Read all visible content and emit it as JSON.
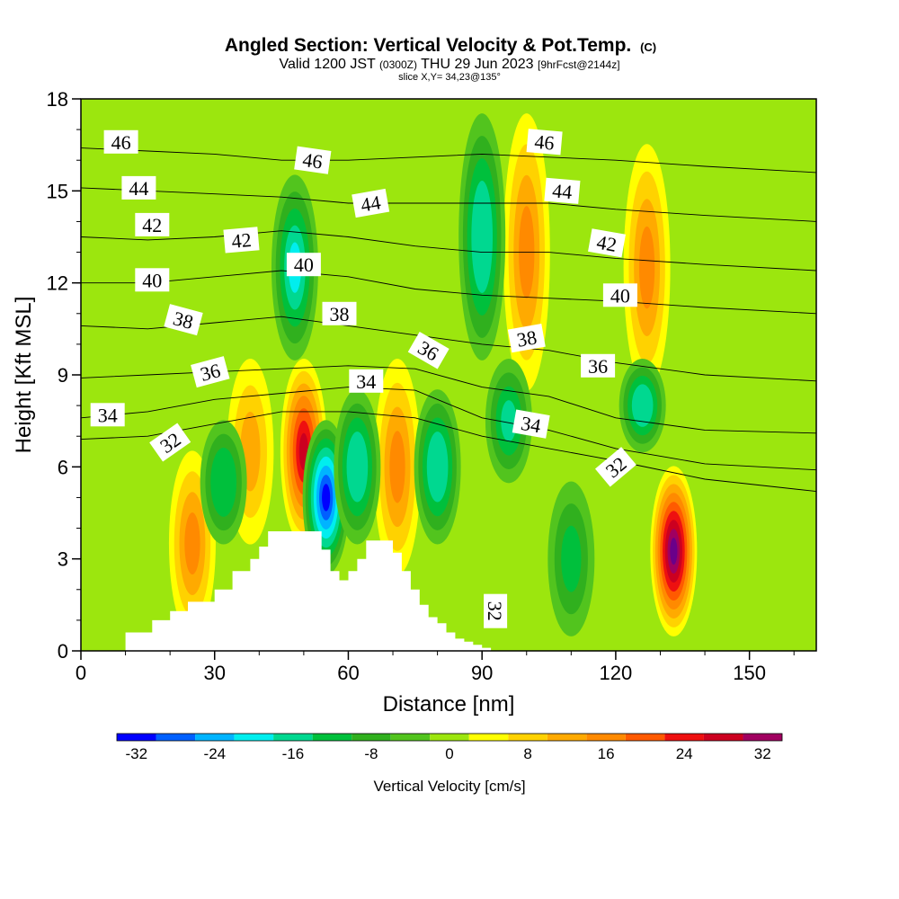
{
  "header": {
    "title_main": "Angled Section: Vertical Velocity & Pot.Temp.",
    "title_copyright": "(C)",
    "valid_prefix": "Valid 1200 JST",
    "valid_utc": "(0300Z)",
    "valid_date": "THU 29 Jun 2023",
    "forecast_info": "[9hrFcst@2144z]",
    "slice_info": "slice X,Y= 34,23@135°"
  },
  "chart_data": {
    "type": "heatmap",
    "xlabel": "Distance [nm]",
    "ylabel": "Height [Kft MSL]",
    "xlim": [
      0,
      165
    ],
    "ylim": [
      0,
      18
    ],
    "x_ticks": [
      0,
      30,
      60,
      90,
      120,
      150
    ],
    "y_ticks": [
      0,
      3,
      6,
      9,
      12,
      15,
      18
    ],
    "fill_variable": "Vertical Velocity [cm/s]",
    "contour_variable": "Potential Temperature (C)",
    "colorbar": {
      "label": "Vertical Velocity [cm/s]",
      "ticks": [
        -32,
        -24,
        -16,
        -8,
        0,
        8,
        16,
        24,
        32
      ],
      "bins": [
        -34,
        -30,
        -26,
        -22,
        -18,
        -14,
        -10,
        -6,
        -2,
        2,
        6,
        10,
        14,
        18,
        22,
        26,
        30,
        34
      ],
      "colors": [
        "#0000ff",
        "#0060ff",
        "#00b4ff",
        "#00eeee",
        "#00d890",
        "#00c03c",
        "#30b01e",
        "#52c41e",
        "#9ce60e",
        "#ffff00",
        "#ffd200",
        "#ffaa00",
        "#ff8a00",
        "#ff5a00",
        "#ee1010",
        "#cc0020",
        "#a00060",
        "#6a008a"
      ]
    },
    "updraft_columns": [
      {
        "x": 25,
        "z": [
          1,
          6
        ],
        "peak_w": 14
      },
      {
        "x": 38,
        "z": [
          4,
          9
        ],
        "peak_w": 10
      },
      {
        "x": 50,
        "z": [
          4,
          9
        ],
        "peak_w": 26
      },
      {
        "x": 71,
        "z": [
          3,
          9
        ],
        "peak_w": 16
      },
      {
        "x": 100,
        "z": [
          9,
          17
        ],
        "peak_w": 14
      },
      {
        "x": 127,
        "z": [
          9,
          16
        ],
        "peak_w": 14
      },
      {
        "x": 133,
        "z": [
          1,
          5.5
        ],
        "peak_w": 34
      }
    ],
    "downdraft_columns": [
      {
        "x": 32,
        "z": [
          4,
          7
        ],
        "peak_w": -14
      },
      {
        "x": 48,
        "z": [
          10,
          15
        ],
        "peak_w": -20
      },
      {
        "x": 55,
        "z": [
          3,
          7
        ],
        "peak_w": -32
      },
      {
        "x": 62,
        "z": [
          4,
          8
        ],
        "peak_w": -18
      },
      {
        "x": 80,
        "z": [
          4,
          8
        ],
        "peak_w": -18
      },
      {
        "x": 90,
        "z": [
          10,
          17
        ],
        "peak_w": -18
      },
      {
        "x": 96,
        "z": [
          6,
          9
        ],
        "peak_w": -16
      },
      {
        "x": 110,
        "z": [
          1,
          5
        ],
        "peak_w": -12
      },
      {
        "x": 126,
        "z": [
          7,
          9
        ],
        "peak_w": -18
      }
    ],
    "terrain_profile": {
      "x": [
        0,
        10,
        16,
        20,
        24,
        30,
        34,
        38,
        40,
        42,
        44,
        46,
        48,
        50,
        52,
        54,
        56,
        58,
        60,
        62,
        64,
        66,
        68,
        70,
        72,
        74,
        76,
        78,
        80,
        82,
        84,
        86,
        88,
        90,
        92,
        165
      ],
      "z": [
        0,
        0.6,
        1.0,
        1.3,
        1.6,
        2.0,
        2.6,
        3.0,
        3.4,
        3.9,
        3.9,
        3.9,
        3.9,
        3.9,
        3.9,
        3.3,
        2.6,
        2.3,
        2.6,
        3.0,
        3.6,
        3.6,
        3.6,
        3.2,
        2.6,
        2.0,
        1.5,
        1.1,
        0.9,
        0.6,
        0.4,
        0.3,
        0.2,
        0.1,
        0,
        0
      ]
    },
    "isentropes": [
      {
        "theta": 32,
        "label": "32",
        "z": [
          6.9,
          7.0,
          7.4,
          7.8,
          7.8,
          7.6,
          7.0,
          6.6,
          6.2,
          5.6,
          5.2
        ]
      },
      {
        "theta": 34,
        "label": "34",
        "z": [
          7.6,
          7.8,
          8.2,
          8.4,
          8.6,
          8.5,
          7.6,
          7.2,
          6.6,
          6.1,
          5.9
        ]
      },
      {
        "theta": 36,
        "label": "36",
        "z": [
          8.9,
          9.0,
          9.1,
          9.2,
          9.3,
          9.2,
          8.6,
          8.3,
          7.6,
          7.2,
          7.1
        ]
      },
      {
        "theta": 38,
        "label": "38",
        "z": [
          10.6,
          10.5,
          10.7,
          10.9,
          10.6,
          10.3,
          10.0,
          9.8,
          9.4,
          9.0,
          8.8
        ]
      },
      {
        "theta": 40,
        "label": "40",
        "z": [
          12.0,
          12.0,
          12.2,
          12.4,
          12.2,
          11.8,
          11.6,
          11.5,
          11.4,
          11.2,
          11.0
        ]
      },
      {
        "theta": 42,
        "label": "42",
        "z": [
          13.5,
          13.4,
          13.5,
          13.7,
          13.5,
          13.2,
          13.0,
          13.0,
          12.8,
          12.6,
          12.4
        ]
      },
      {
        "theta": 44,
        "label": "44",
        "z": [
          15.1,
          15.0,
          14.9,
          14.8,
          14.6,
          14.6,
          14.6,
          14.6,
          14.4,
          14.2,
          14.0
        ]
      },
      {
        "theta": 46,
        "label": "46",
        "z": [
          16.4,
          16.3,
          16.2,
          16.0,
          16.0,
          16.1,
          16.2,
          16.1,
          16.0,
          15.8,
          15.6
        ]
      }
    ],
    "isentrope_x": [
      0,
      15,
      30,
      45,
      60,
      75,
      90,
      105,
      120,
      140,
      165
    ],
    "contour_labels": [
      {
        "text": "46",
        "x": 9,
        "z": 16.6,
        "angle": 0
      },
      {
        "text": "46",
        "x": 52,
        "z": 16.0,
        "angle": 8
      },
      {
        "text": "46",
        "x": 104,
        "z": 16.6,
        "angle": 5
      },
      {
        "text": "44",
        "x": 13,
        "z": 15.1,
        "angle": 0
      },
      {
        "text": "44",
        "x": 65,
        "z": 14.6,
        "angle": -10
      },
      {
        "text": "44",
        "x": 108,
        "z": 15.0,
        "angle": 5
      },
      {
        "text": "42",
        "x": 16,
        "z": 13.9,
        "angle": 0
      },
      {
        "text": "42",
        "x": 36,
        "z": 13.4,
        "angle": -5
      },
      {
        "text": "42",
        "x": 118,
        "z": 13.3,
        "angle": 10
      },
      {
        "text": "40",
        "x": 16,
        "z": 12.1,
        "angle": 0
      },
      {
        "text": "40",
        "x": 50,
        "z": 12.6,
        "angle": 0
      },
      {
        "text": "40",
        "x": 121,
        "z": 11.6,
        "angle": 0
      },
      {
        "text": "38",
        "x": 23,
        "z": 10.8,
        "angle": 15
      },
      {
        "text": "38",
        "x": 58,
        "z": 11.0,
        "angle": 0
      },
      {
        "text": "38",
        "x": 100,
        "z": 10.2,
        "angle": -10
      },
      {
        "text": "36",
        "x": 29,
        "z": 9.1,
        "angle": -15
      },
      {
        "text": "36",
        "x": 78,
        "z": 9.8,
        "angle": 30
      },
      {
        "text": "36",
        "x": 116,
        "z": 9.3,
        "angle": 0
      },
      {
        "text": "34",
        "x": 6,
        "z": 7.7,
        "angle": 0
      },
      {
        "text": "34",
        "x": 64,
        "z": 8.8,
        "angle": 0
      },
      {
        "text": "34",
        "x": 101,
        "z": 7.4,
        "angle": 10
      },
      {
        "text": "32",
        "x": 20,
        "z": 6.8,
        "angle": -35
      },
      {
        "text": "32",
        "x": 120,
        "z": 6.0,
        "angle": -40
      },
      {
        "text": "32",
        "x": 93,
        "z": 1.3,
        "angle": 90
      }
    ]
  }
}
